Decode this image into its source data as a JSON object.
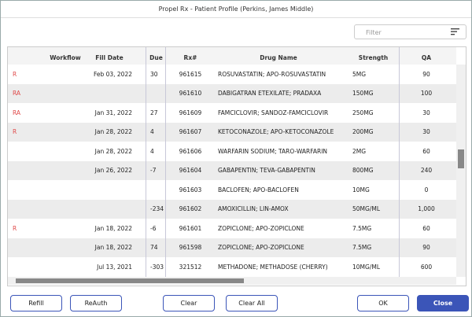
{
  "window": {
    "title": "Propel Rx - Patient Profile (Perkins, James Middle)"
  },
  "filter": {
    "placeholder": "Filter"
  },
  "table": {
    "columns": [
      null,
      "Workflow",
      "Fill Date",
      "Due",
      "Rx#",
      "Drug Name",
      "Strength",
      "QA"
    ],
    "rows": [
      [
        "R",
        null,
        "Feb 03, 2022",
        "30",
        "961615",
        "ROSUVASTATIN; APO-ROSUVASTATIN",
        "5MG",
        "90"
      ],
      [
        "RA",
        null,
        null,
        null,
        "961610",
        "DABIGATRAN ETEXILATE; PRADAXA",
        "150MG",
        "100"
      ],
      [
        "RA",
        null,
        "Jan 31, 2022",
        "27",
        "961609",
        "FAMCICLOVIR; SANDOZ-FAMCICLOVIR",
        "250MG",
        "30"
      ],
      [
        "R",
        null,
        "Jan 28, 2022",
        "4",
        "961607",
        "KETOCONAZOLE; APO-KETOCONAZOLE",
        "200MG",
        "30"
      ],
      [
        null,
        null,
        "Jan 28, 2022",
        "4",
        "961606",
        "WARFARIN SODIUM; TARO-WARFARIN",
        "2MG",
        "60"
      ],
      [
        null,
        null,
        "Jan 26, 2022",
        "-7",
        "961604",
        "GABAPENTIN; TEVA-GABAPENTIN",
        "800MG",
        "240"
      ],
      [
        null,
        null,
        null,
        null,
        "961603",
        "BACLOFEN; APO-BACLOFEN",
        "10MG",
        "0"
      ],
      [
        null,
        null,
        null,
        "-234",
        "961602",
        "AMOXICILLIN; LIN-AMOX",
        "50MG/ML",
        "1,000"
      ],
      [
        "R",
        null,
        "Jan 18, 2022",
        "-6",
        "961601",
        "ZOPICLONE; APO-ZOPICLONE",
        "7.5MG",
        "60"
      ],
      [
        null,
        null,
        "Jan 18, 2022",
        "74",
        "961598",
        "ZOPICLONE; APO-ZOPICLONE",
        "7.5MG",
        "90"
      ],
      [
        null,
        null,
        "Jul 13, 2021",
        "-303",
        "321512",
        "METHADONE; METHADOSE (CHERRY)",
        "10MG/ML",
        "600"
      ]
    ]
  },
  "buttons": [
    "Refill",
    "ReAuth",
    "Clear",
    "Clear All",
    "OK",
    "Close"
  ]
}
